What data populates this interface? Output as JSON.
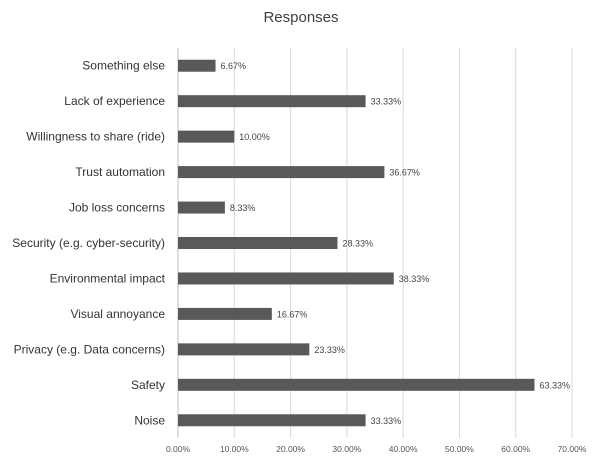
{
  "chart_data": {
    "type": "bar",
    "orientation": "horizontal",
    "title": "Responses",
    "xlabel": "",
    "ylabel": "",
    "xlim": [
      0,
      70
    ],
    "x_ticks": [
      "0.00%",
      "10.00%",
      "20.00%",
      "30.00%",
      "40.00%",
      "50.00%",
      "60.00%",
      "70.00%"
    ],
    "grid": true,
    "bar_color": "#595959",
    "categories": [
      "Something else",
      "Lack of experience",
      "Willingness to share (ride)",
      "Trust automation",
      "Job loss concerns",
      "Security (e.g. cyber-security)",
      "Environmental impact",
      "Visual annoyance",
      "Privacy (e.g. Data concerns)",
      "Safety",
      "Noise"
    ],
    "values": [
      6.67,
      33.33,
      10.0,
      36.67,
      8.33,
      28.33,
      38.33,
      16.67,
      23.33,
      63.33,
      33.33
    ],
    "data_labels": [
      "6.67%",
      "33.33%",
      "10.00%",
      "36.67%",
      "8.33%",
      "28.33%",
      "38.33%",
      "16.67%",
      "23.33%",
      "63.33%",
      "33.33%"
    ]
  }
}
